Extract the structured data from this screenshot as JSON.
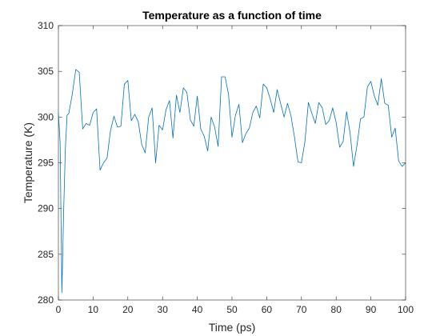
{
  "chart_data": {
    "type": "line",
    "title": "Temperature as a function of time",
    "xlabel": "Time (ps)",
    "ylabel": "Temperature (K)",
    "xlim": [
      0,
      100
    ],
    "ylim": [
      280,
      310
    ],
    "xticks": [
      0,
      10,
      20,
      30,
      40,
      50,
      60,
      70,
      80,
      90,
      100
    ],
    "yticks": [
      280,
      285,
      290,
      295,
      300,
      305,
      310
    ],
    "xtick_labels": [
      "0",
      "10",
      "20",
      "30",
      "40",
      "50",
      "60",
      "70",
      "80",
      "90",
      "100"
    ],
    "ytick_labels": [
      "280",
      "285",
      "290",
      "295",
      "300",
      "305",
      "310"
    ],
    "grid": false,
    "legend": "none",
    "series_color": "#0072BD",
    "series": [
      {
        "x": [
          0,
          0.5,
          1,
          1.5,
          2,
          2.5,
          3,
          4,
          5,
          6,
          7,
          8,
          9,
          10,
          11,
          12,
          13,
          14,
          15,
          16,
          17,
          18,
          19,
          20,
          21,
          22,
          23,
          24,
          25,
          26,
          27,
          28,
          29,
          30,
          31,
          32,
          33,
          34,
          35,
          36,
          37,
          38,
          39,
          40,
          41,
          42,
          43,
          44,
          45,
          46,
          47,
          48,
          49,
          50,
          51,
          52,
          53,
          54,
          55,
          56,
          57,
          58,
          59,
          60,
          61,
          62,
          63,
          64,
          65,
          66,
          67,
          68,
          69,
          70,
          71,
          72,
          73,
          74,
          75,
          76,
          77,
          78,
          79,
          80,
          81,
          82,
          83,
          84,
          85,
          86,
          87,
          88,
          89,
          90,
          91,
          92,
          93,
          94,
          95,
          96,
          97,
          98,
          99,
          100
        ],
        "values": [
          300.5,
          297.2,
          280.8,
          289.5,
          296.5,
          300.2,
          300.4,
          302.5,
          305.2,
          304.9,
          298.7,
          299.3,
          299.1,
          300.5,
          300.9,
          294.2,
          295.0,
          295.5,
          298.5,
          300.1,
          298.9,
          299.0,
          303.6,
          304.0,
          299.6,
          300.3,
          299.5,
          297.0,
          296.1,
          300.0,
          301.0,
          295.0,
          299.1,
          298.6,
          300.8,
          301.8,
          297.7,
          302.4,
          300.5,
          303.2,
          302.7,
          299.7,
          299.0,
          302.3,
          298.7,
          297.9,
          296.3,
          300.0,
          298.9,
          296.8,
          304.4,
          304.4,
          302.5,
          297.8,
          300.2,
          301.4,
          297.2,
          298.2,
          298.8,
          300.5,
          301.2,
          299.9,
          303.6,
          303.2,
          302.0,
          300.5,
          303.0,
          301.5,
          300.0,
          301.5,
          300.1,
          297.8,
          295.1,
          295.0,
          297.3,
          301.6,
          300.4,
          299.3,
          301.6,
          301.0,
          299.2,
          299.6,
          301.0,
          299.4,
          296.7,
          297.3,
          300.6,
          298.3,
          294.6,
          296.9,
          299.8,
          300.0,
          303.3,
          303.9,
          302.3,
          301.3,
          304.2,
          301.5,
          301.3,
          297.8,
          298.8,
          295.2,
          294.6,
          295.0
        ]
      }
    ]
  }
}
